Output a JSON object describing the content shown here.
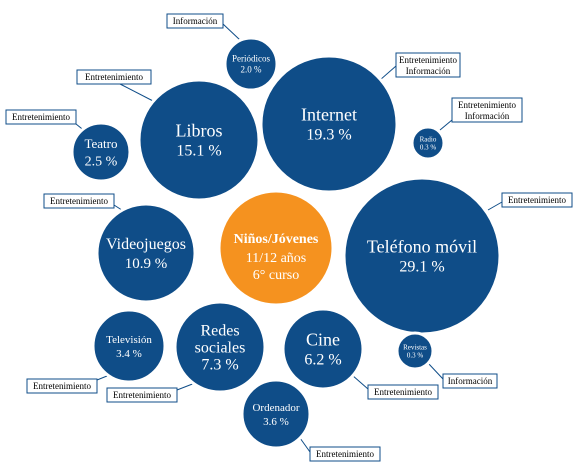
{
  "center": {
    "title": "Niños/Jóvenes",
    "line2": "11/12 años",
    "line3": "6° curso",
    "color": "#f5921f"
  },
  "bubble_color": "#0f4d88",
  "bubbles": [
    {
      "id": "libros",
      "lines": [
        "Libros",
        "15.1 %"
      ],
      "pct": 15.1,
      "tags": [
        "Entretenimiento"
      ]
    },
    {
      "id": "internet",
      "lines": [
        "Internet",
        "19.3 %"
      ],
      "pct": 19.3,
      "tags": [
        "Entretenimiento",
        "Información"
      ]
    },
    {
      "id": "telefono",
      "lines": [
        "Teléfono móvil",
        "29.1 %"
      ],
      "pct": 29.1,
      "tags": [
        "Entretenimiento"
      ]
    },
    {
      "id": "videojuegos",
      "lines": [
        "Videojuegos",
        "10.9 %"
      ],
      "pct": 10.9,
      "tags": [
        "Entretenimiento"
      ]
    },
    {
      "id": "redes",
      "lines": [
        "Redes",
        "sociales",
        "7.3 %"
      ],
      "pct": 7.3,
      "tags": [
        "Entretenimiento"
      ]
    },
    {
      "id": "cine",
      "lines": [
        "Cine",
        "6.2 %"
      ],
      "pct": 6.2,
      "tags": [
        "Entretenimiento"
      ]
    },
    {
      "id": "ordenador",
      "lines": [
        "Ordenador",
        "3.6 %"
      ],
      "pct": 3.6,
      "tags": [
        "Entretenimiento"
      ]
    },
    {
      "id": "television",
      "lines": [
        "Televisión",
        "3.4 %"
      ],
      "pct": 3.4,
      "tags": [
        "Entretenimiento"
      ]
    },
    {
      "id": "teatro",
      "lines": [
        "Teatro",
        "2.5 %"
      ],
      "pct": 2.5,
      "tags": [
        "Entretenimiento"
      ]
    },
    {
      "id": "periodicos",
      "lines": [
        "Periódicos",
        "2.0 %"
      ],
      "pct": 2.0,
      "tags": [
        "Información"
      ]
    },
    {
      "id": "radio",
      "lines": [
        "Radio",
        "0.3 %"
      ],
      "pct": 0.3,
      "tags": [
        "Entretenimiento",
        "Información"
      ]
    },
    {
      "id": "revistas",
      "lines": [
        "Revistas",
        "0.3 %"
      ],
      "pct": 0.3,
      "tags": [
        "Información"
      ]
    }
  ]
}
